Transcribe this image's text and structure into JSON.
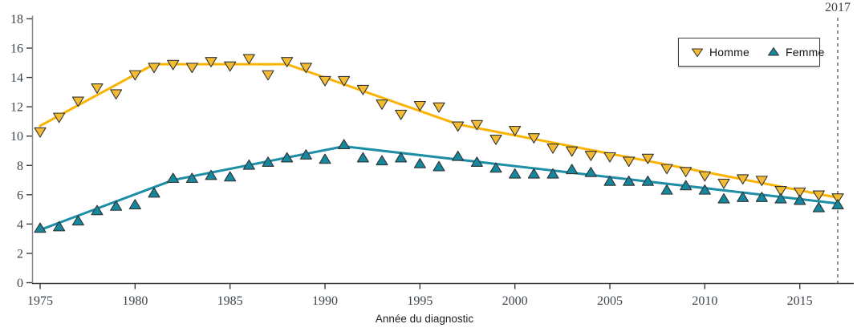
{
  "figure": {
    "background": "#ffffff",
    "axis_color": "#3a3a3a",
    "y_axis_color": "#8a8a8a",
    "tick_label_color": "#3d464d",
    "vline_color": "#4a4a4a"
  },
  "chart_data": {
    "type": "scatter",
    "title": "",
    "xlabel": "Année du diagnostic",
    "ylabel": "",
    "xlim": [
      1974.6,
      2018
    ],
    "ylim": [
      0,
      18
    ],
    "x_ticks": [
      1975,
      1980,
      1985,
      1990,
      1995,
      2000,
      2005,
      2010,
      2015
    ],
    "y_ticks": [
      0,
      2,
      4,
      6,
      8,
      10,
      12,
      14,
      16,
      18
    ],
    "grid": false,
    "legend_position": "top-right",
    "vline": {
      "x": 2017,
      "label": "2017",
      "style": "dashed"
    },
    "x": [
      1975,
      1976,
      1977,
      1978,
      1979,
      1980,
      1981,
      1982,
      1983,
      1984,
      1985,
      1986,
      1987,
      1988,
      1989,
      1990,
      1991,
      1992,
      1993,
      1994,
      1995,
      1996,
      1997,
      1998,
      1999,
      2000,
      2001,
      2002,
      2003,
      2004,
      2005,
      2006,
      2007,
      2008,
      2009,
      2010,
      2011,
      2012,
      2013,
      2014,
      2015,
      2016,
      2017
    ],
    "series": [
      {
        "name": "Homme",
        "marker": "triangle-down",
        "color": "#F3BC33",
        "line_color": "#F9B403",
        "values": [
          10.3,
          11.3,
          12.4,
          13.3,
          12.9,
          14.2,
          14.7,
          14.9,
          14.7,
          15.1,
          14.8,
          15.3,
          14.2,
          15.1,
          14.7,
          13.8,
          13.8,
          13.2,
          12.2,
          11.5,
          12.1,
          12.0,
          10.7,
          10.8,
          9.8,
          10.4,
          9.9,
          9.2,
          9.0,
          8.7,
          8.6,
          8.3,
          8.5,
          7.8,
          7.6,
          7.3,
          6.8,
          7.1,
          7.0,
          6.3,
          6.2,
          6.0,
          5.8
        ],
        "trend": [
          [
            1975,
            10.7
          ],
          [
            1981,
            14.9
          ],
          [
            1988,
            14.9
          ],
          [
            1997,
            10.8
          ],
          [
            2017,
            5.8
          ]
        ]
      },
      {
        "name": "Femme",
        "marker": "triangle-up",
        "color": "#15879E",
        "line_color": "#1D8EA6",
        "values": [
          3.7,
          3.8,
          4.2,
          4.9,
          5.2,
          5.3,
          6.1,
          7.1,
          7.1,
          7.3,
          7.2,
          8.0,
          8.2,
          8.5,
          8.7,
          8.4,
          9.4,
          8.5,
          8.3,
          8.5,
          8.1,
          7.9,
          8.6,
          8.2,
          7.8,
          7.4,
          7.4,
          7.4,
          7.7,
          7.5,
          6.9,
          6.9,
          6.9,
          6.3,
          6.6,
          6.3,
          5.7,
          5.8,
          5.8,
          5.7,
          5.6,
          5.1,
          5.3
        ],
        "trend": [
          [
            1975,
            3.6
          ],
          [
            1982,
            7.0
          ],
          [
            1991,
            9.3
          ],
          [
            2017,
            5.4
          ]
        ]
      }
    ]
  }
}
